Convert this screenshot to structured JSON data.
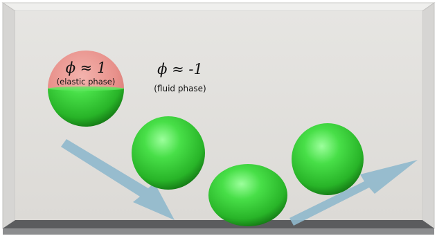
{
  "labels": {
    "elastic_phi": "ϕ ≈ 1",
    "elastic_phase": "(elastic phase)",
    "fluid_phi": "ϕ ≈ -1",
    "fluid_phase": "(fluid phase)"
  },
  "colors": {
    "box_back": "#e4e2de",
    "box_side": "#d2d1cf",
    "box_top": "#ececea",
    "floor_top": "#5a5b5d",
    "floor_front": "#8a8b8d",
    "sphere_green": "#3dd13d",
    "sphere_dark": "#1f8f1f",
    "sphere_light": "#8cff8c",
    "elastic_cap": "#e88c86",
    "arrow": "#8fb8cc"
  },
  "icons": [
    "bouncing-sphere-sequence",
    "trajectory-arrow"
  ]
}
